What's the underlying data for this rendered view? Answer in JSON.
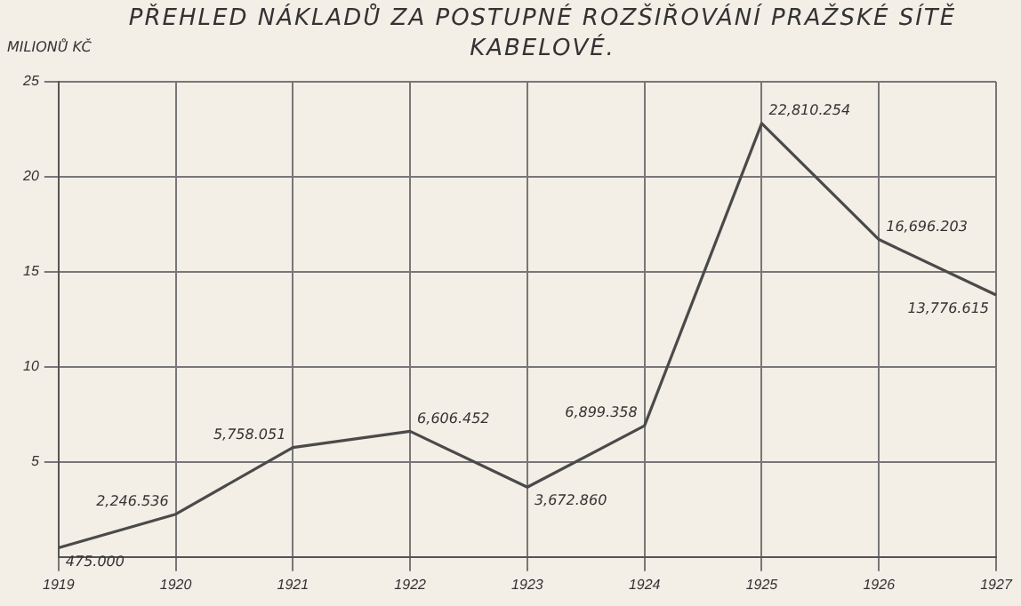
{
  "chart_data": {
    "type": "line",
    "title": "PŘEHLED NÁKLADŮ ZA POSTUPNÉ ROZŠIŘOVÁNÍ PRAŽSKÉ SÍTĚ KABELOVÉ.",
    "ylabel": "MILIONŮ KČ",
    "categories": [
      "1919",
      "1920",
      "1921",
      "1922",
      "1923",
      "1924",
      "1925",
      "1926",
      "1927"
    ],
    "series": [
      {
        "color": "#4a4a4a",
        "values": [
          0.48,
          2.25,
          5.76,
          6.61,
          3.67,
          6.9,
          22.81,
          16.7,
          13.78
        ]
      }
    ],
    "annotations": [
      {
        "text": "475.000",
        "x": "1919",
        "y": 0.48
      },
      {
        "text": "2,246.536",
        "x": "1920",
        "y": 2.25
      },
      {
        "text": "5,758.051",
        "x": "1921",
        "y": 5.76
      },
      {
        "text": "6,606.452",
        "x": "1922",
        "y": 6.61
      },
      {
        "text": "3,672.860",
        "x": "1923",
        "y": 3.67
      },
      {
        "text": "6,899.358",
        "x": "1924",
        "y": 6.9
      },
      {
        "text": "22,810.254",
        "x": "1925",
        "y": 22.81
      },
      {
        "text": "16,696.203",
        "x": "1926",
        "y": 16.7
      },
      {
        "text": "13,776.615",
        "x": "1927",
        "y": 13.78
      }
    ],
    "ylim": [
      0,
      25
    ],
    "yticks": [
      5,
      10,
      15,
      20,
      25
    ],
    "grid": true,
    "legend": false,
    "marker": "none",
    "line_style": "solid"
  }
}
